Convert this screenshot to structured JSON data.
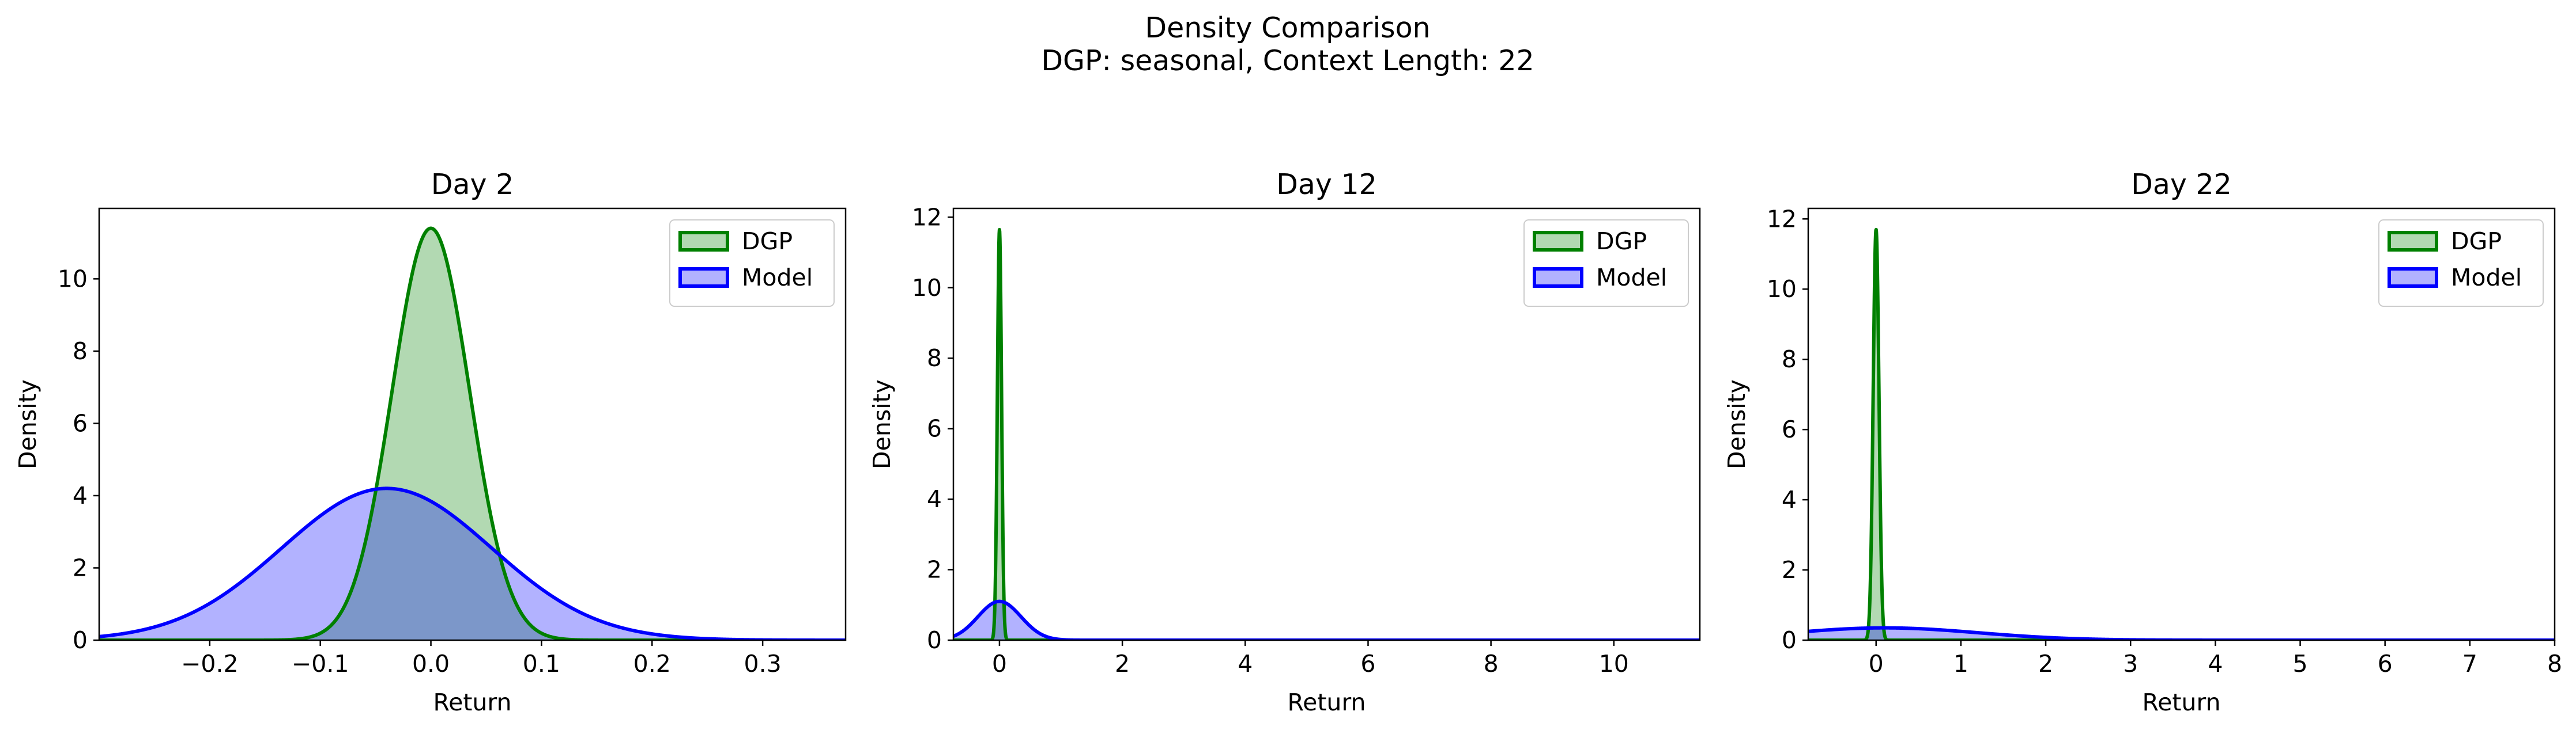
{
  "figure": {
    "title_line1": "Density Comparison",
    "title_line2": "DGP: seasonal, Context Length: 22"
  },
  "colors": {
    "dgp_line": "#008000",
    "dgp_fill": "#b2d8b2",
    "model_line": "#0000ff",
    "model_fill": "#b2b2ff",
    "overlap_fill": "#7b9ccb"
  },
  "chart_data": [
    {
      "type": "area",
      "title": "Day 2",
      "xlabel": "Return",
      "ylabel": "Density",
      "xlim": [
        -0.3,
        0.375
      ],
      "ylim": [
        0,
        11.95
      ],
      "xticks": [
        -0.2,
        -0.1,
        0.0,
        0.1,
        0.2,
        0.3
      ],
      "xtick_labels": [
        "−0.2",
        "−0.1",
        "0.0",
        "0.1",
        "0.2",
        "0.3"
      ],
      "yticks": [
        0,
        2,
        4,
        6,
        8,
        10
      ],
      "ytick_labels": [
        "0",
        "2",
        "4",
        "6",
        "8",
        "10"
      ],
      "legend": {
        "position": "upper right",
        "entries": [
          "DGP",
          "Model"
        ]
      },
      "series": [
        {
          "name": "DGP",
          "kind": "normal",
          "mean": 0.0,
          "sd": 0.035,
          "peak": 11.4
        },
        {
          "name": "Model",
          "kind": "normal",
          "mean": -0.04,
          "sd": 0.095,
          "peak": 4.2
        }
      ]
    },
    {
      "type": "area",
      "title": "Day 12",
      "xlabel": "Return",
      "ylabel": "Density",
      "xlim": [
        -0.75,
        11.4
      ],
      "ylim": [
        0,
        12.25
      ],
      "xticks": [
        0,
        2,
        4,
        6,
        8,
        10
      ],
      "xtick_labels": [
        "0",
        "2",
        "4",
        "6",
        "8",
        "10"
      ],
      "yticks": [
        0,
        2,
        4,
        6,
        8,
        10,
        12
      ],
      "ytick_labels": [
        "0",
        "2",
        "4",
        "6",
        "8",
        "10",
        "12"
      ],
      "legend": {
        "position": "upper right",
        "entries": [
          "DGP",
          "Model"
        ]
      },
      "series": [
        {
          "name": "DGP",
          "kind": "normal",
          "mean": 0.0,
          "sd": 0.034,
          "peak": 11.65
        },
        {
          "name": "Model",
          "kind": "normal",
          "mean": 0.0,
          "sd": 0.35,
          "peak": 1.1
        }
      ]
    },
    {
      "type": "area",
      "title": "Day 22",
      "xlabel": "Return",
      "ylabel": "Density",
      "xlim": [
        -0.8,
        8.0
      ],
      "ylim": [
        0,
        12.3
      ],
      "xticks": [
        0,
        1,
        2,
        3,
        4,
        5,
        6,
        7,
        8
      ],
      "xtick_labels": [
        "0",
        "1",
        "2",
        "3",
        "4",
        "5",
        "6",
        "7",
        "8"
      ],
      "yticks": [
        0,
        2,
        4,
        6,
        8,
        10,
        12
      ],
      "ytick_labels": [
        "0",
        "2",
        "4",
        "6",
        "8",
        "10",
        "12"
      ],
      "legend": {
        "position": "upper right",
        "entries": [
          "DGP",
          "Model"
        ]
      },
      "series": [
        {
          "name": "DGP",
          "kind": "normal",
          "mean": 0.0,
          "sd": 0.034,
          "peak": 11.7
        },
        {
          "name": "Model",
          "kind": "normal",
          "mean": 0.1,
          "sd": 1.1,
          "peak": 0.35
        }
      ]
    }
  ]
}
